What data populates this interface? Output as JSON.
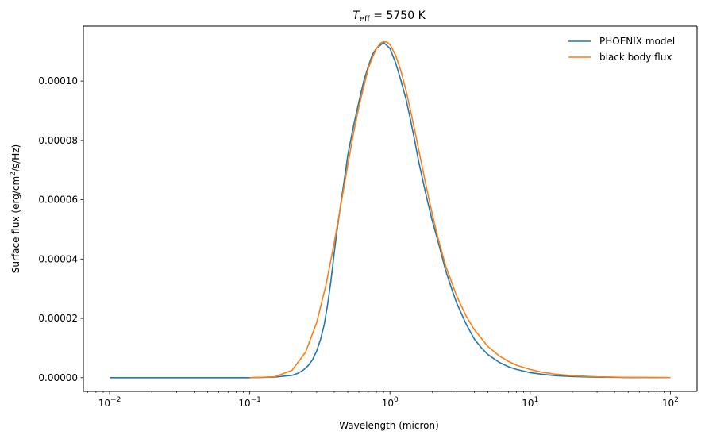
{
  "chart_data": {
    "type": "line",
    "title_main": "T",
    "title_sub": "eff",
    "title_rest": " = 5750 K",
    "xlabel": "Wavelength (micron)",
    "ylabel_pre": "Surface flux (erg/cm",
    "ylabel_sup": "2",
    "ylabel_post": "/s/Hz)",
    "x_scale": "log",
    "xlim": [
      0.0065,
      155
    ],
    "ylim": [
      -4.6e-06,
      0.0001185
    ],
    "xticks": [
      0.01,
      0.1,
      1,
      10,
      100
    ],
    "xtick_labels": [
      {
        "base": "10",
        "exp": "−2"
      },
      {
        "base": "10",
        "exp": "−1"
      },
      {
        "base": "10",
        "exp": "0"
      },
      {
        "base": "10",
        "exp": "1"
      },
      {
        "base": "10",
        "exp": "2"
      }
    ],
    "yticks": [
      0,
      2e-05,
      4e-05,
      6e-05,
      8e-05,
      0.0001
    ],
    "ytick_labels": [
      "0.00000",
      "0.00002",
      "0.00004",
      "0.00006",
      "0.00008",
      "0.00010"
    ],
    "grid": false,
    "legend_position": "top-right",
    "series": [
      {
        "name": "PHOENIX model",
        "color": "#1f77b4",
        "x": [
          0.01,
          0.05,
          0.1,
          0.15,
          0.2,
          0.22,
          0.24,
          0.26,
          0.28,
          0.3,
          0.32,
          0.34,
          0.36,
          0.38,
          0.4,
          0.42,
          0.45,
          0.48,
          0.5,
          0.55,
          0.6,
          0.65,
          0.7,
          0.75,
          0.8,
          0.85,
          0.9,
          0.95,
          1.0,
          1.1,
          1.2,
          1.3,
          1.4,
          1.5,
          1.6,
          1.8,
          2.0,
          2.2,
          2.5,
          2.8,
          3.0,
          3.5,
          4.0,
          4.5,
          5.0,
          6.0,
          7.0,
          8.0,
          10,
          12,
          15,
          20,
          30,
          50,
          100
        ],
        "y": [
          0,
          0,
          0,
          2e-07,
          8e-07,
          1.5e-06,
          2.5e-06,
          4e-06,
          6e-06,
          9e-06,
          1.3e-05,
          1.8e-05,
          2.5e-05,
          3.3e-05,
          4.2e-05,
          5e-05,
          6e-05,
          6.9e-05,
          7.5e-05,
          8.5e-05,
          9.3e-05,
          0.0001,
          0.000105,
          0.000109,
          0.000111,
          0.000112,
          0.000113,
          0.000112,
          0.000111,
          0.000106,
          0.0001,
          9.4e-05,
          8.7e-05,
          8e-05,
          7.3e-05,
          6.2e-05,
          5.3e-05,
          4.6e-05,
          3.6e-05,
          2.9e-05,
          2.5e-05,
          1.8e-05,
          1.3e-05,
          1e-05,
          7.8e-06,
          5.2e-06,
          3.7e-06,
          2.8e-06,
          1.7e-06,
          1.2e-06,
          7e-07,
          4e-07,
          1.8e-07,
          6e-08,
          2e-08
        ]
      },
      {
        "name": "black body flux",
        "color": "#ff7f0e",
        "x": [
          0.1,
          0.15,
          0.2,
          0.25,
          0.3,
          0.35,
          0.4,
          0.45,
          0.5,
          0.55,
          0.6,
          0.65,
          0.7,
          0.75,
          0.8,
          0.85,
          0.9,
          0.95,
          1.0,
          1.1,
          1.2,
          1.3,
          1.4,
          1.5,
          1.6,
          1.8,
          2.0,
          2.2,
          2.5,
          3.0,
          3.5,
          4.0,
          5.0,
          6.0,
          7.0,
          8.0,
          10,
          12,
          15,
          20,
          30,
          50,
          100
        ],
        "y": [
          0,
          3e-07,
          2.5e-06,
          8.6e-06,
          1.86e-05,
          3.14e-05,
          4.54e-05,
          5.92e-05,
          7.17e-05,
          8.25e-05,
          9.13e-05,
          9.8e-05,
          0.0001043,
          0.000108,
          0.0001109,
          0.0001127,
          0.0001133,
          0.0001131,
          0.0001123,
          0.0001086,
          0.0001032,
          9.69e-05,
          9.02e-05,
          8.35e-05,
          7.7e-05,
          6.52e-05,
          5.53e-05,
          4.71e-05,
          3.76e-05,
          2.74e-05,
          2.07e-05,
          1.62e-05,
          1.05e-05,
          7.4e-06,
          5.5e-06,
          4.2e-06,
          2.8e-06,
          1.9e-06,
          1.2e-06,
          7e-07,
          3.1e-07,
          1.1e-07,
          3e-08
        ]
      }
    ]
  }
}
